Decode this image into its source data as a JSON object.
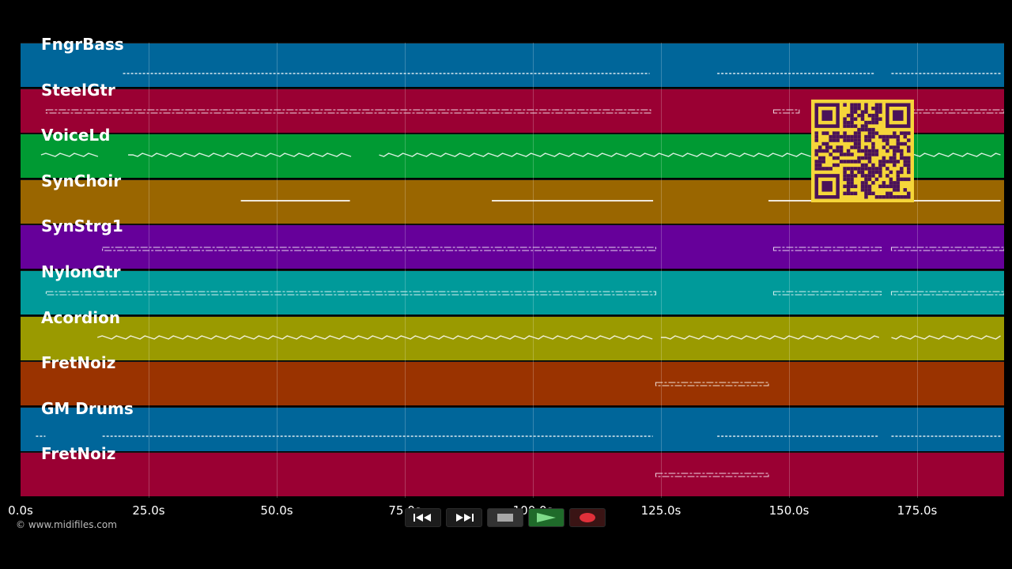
{
  "tracks": [
    {
      "name": "FngrBass",
      "color": "#00669a"
    },
    {
      "name": "SteelGtr",
      "color": "#9a0033"
    },
    {
      "name": "VoiceLd",
      "color": "#009a33"
    },
    {
      "name": "SynChoir",
      "color": "#9a6600"
    },
    {
      "name": "SynStrg1",
      "color": "#66009a"
    },
    {
      "name": "NylonGtr",
      "color": "#009a9a"
    },
    {
      "name": "Acordion",
      "color": "#9a9a00"
    },
    {
      "name": "FretNoiz",
      "color": "#9a3300"
    },
    {
      "name": "GM Drums",
      "color": "#00669a"
    },
    {
      "name": "FretNoiz",
      "color": "#9a0033"
    }
  ],
  "time_axis": {
    "tick_labels": [
      "0.0s",
      "25.0s",
      "50.0s",
      "75.0s",
      "100.0s",
      "125.0s",
      "150.0s",
      "175.0s"
    ]
  },
  "copyright": "© www.midifiles.com",
  "transport": {
    "buttons": [
      "rewind",
      "fast-forward",
      "stop",
      "play",
      "record"
    ]
  },
  "qr_code": {
    "fg_color": "#f5d63a",
    "module_color": "#4a1259"
  }
}
